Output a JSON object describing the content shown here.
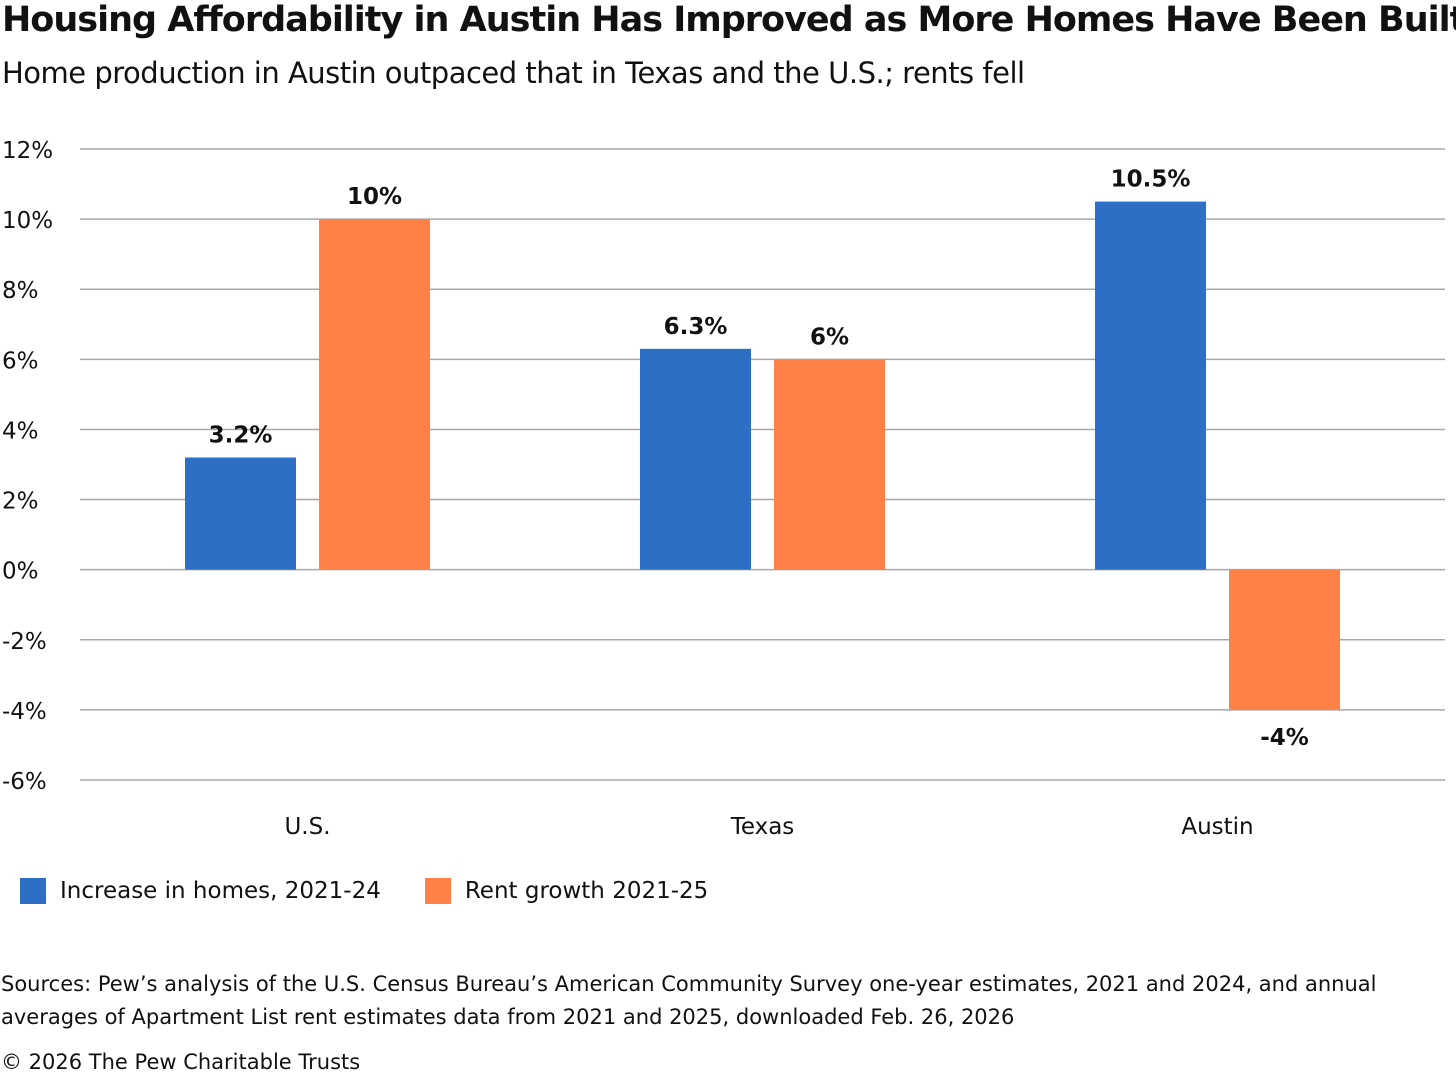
{
  "title": "Housing Affordability in Austin Has Improved as More Homes Have Been Built",
  "subtitle": "Home production in Austin outpaced that in Texas and the U.S.; rents fell",
  "chart_data": {
    "type": "bar",
    "categories": [
      "U.S.",
      "Texas",
      "Austin"
    ],
    "series": [
      {
        "name": "Increase in homes, 2021-24",
        "color": "#2E6FC6",
        "values": [
          3.2,
          6.3,
          10.5
        ],
        "labels": [
          "3.2%",
          "6.3%",
          "10.5%"
        ]
      },
      {
        "name": "Rent growth 2021-25",
        "color": "#FF8147",
        "values": [
          10,
          6,
          -4
        ],
        "labels": [
          "10%",
          "6%",
          "-4%"
        ]
      }
    ],
    "ylim": [
      -6,
      12
    ],
    "yticks": [
      12,
      10,
      8,
      6,
      4,
      2,
      0,
      -2,
      -4,
      -6
    ],
    "ytick_labels": [
      "12%",
      "10%",
      "8%",
      "6%",
      "4%",
      "2%",
      "0%",
      "-2%",
      "-4%",
      "-6%"
    ],
    "grid": true,
    "legend": "bottom-left",
    "xlabel": "",
    "ylabel": ""
  },
  "source": "Sources: Pew’s analysis of the U.S. Census Bureau’s American Community Survey one-year estimates, 2021 and 2024, and annual averages of Apartment List rent estimates data from 2021 and 2025, downloaded Feb. 26, 2026",
  "copyright": "© 2026 The Pew Charitable Trusts"
}
